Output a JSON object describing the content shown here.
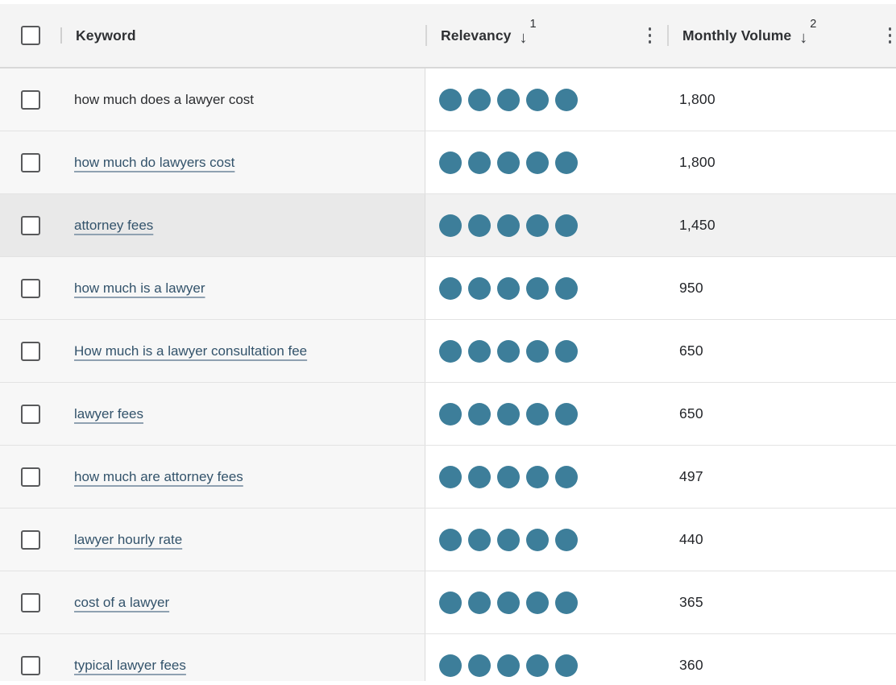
{
  "header": {
    "select_all": {
      "checked": false
    },
    "columns": [
      {
        "label": "Keyword"
      },
      {
        "label": "Relevancy",
        "sort_arrow": "↓",
        "sort_order": "1"
      },
      {
        "label": "Monthly Volume",
        "sort_arrow": "↓",
        "sort_order": "2"
      }
    ]
  },
  "colors": {
    "relevancy_dot": "#3d7e9a",
    "link_text": "#33536b",
    "header_bg": "#f4f4f4",
    "keyword_col_bg": "#f7f7f7",
    "highlight_row_bg": "#f1f1f1",
    "highlight_keyword_cell_bg": "#e9e9e9"
  },
  "table": {
    "relevancy_max": 5,
    "rows": [
      {
        "keyword": "how much does a lawyer cost",
        "is_link": false,
        "relevancy": 5,
        "monthly_volume": "1,800",
        "highlighted": false,
        "checked": false
      },
      {
        "keyword": "how much do lawyers cost",
        "is_link": true,
        "relevancy": 5,
        "monthly_volume": "1,800",
        "highlighted": false,
        "checked": false
      },
      {
        "keyword": "attorney fees",
        "is_link": true,
        "relevancy": 5,
        "monthly_volume": "1,450",
        "highlighted": true,
        "checked": false
      },
      {
        "keyword": "how much is a lawyer",
        "is_link": true,
        "relevancy": 5,
        "monthly_volume": "950",
        "highlighted": false,
        "checked": false
      },
      {
        "keyword": "How much is a lawyer consultation fee",
        "is_link": true,
        "relevancy": 5,
        "monthly_volume": "650",
        "highlighted": false,
        "checked": false
      },
      {
        "keyword": "lawyer fees",
        "is_link": true,
        "relevancy": 5,
        "monthly_volume": "650",
        "highlighted": false,
        "checked": false
      },
      {
        "keyword": "how much are attorney fees",
        "is_link": true,
        "relevancy": 5,
        "monthly_volume": "497",
        "highlighted": false,
        "checked": false
      },
      {
        "keyword": "lawyer hourly rate",
        "is_link": true,
        "relevancy": 5,
        "monthly_volume": "440",
        "highlighted": false,
        "checked": false
      },
      {
        "keyword": "cost of a lawyer",
        "is_link": true,
        "relevancy": 5,
        "monthly_volume": "365",
        "highlighted": false,
        "checked": false
      },
      {
        "keyword": "typical lawyer fees",
        "is_link": true,
        "relevancy": 5,
        "monthly_volume": "360",
        "highlighted": false,
        "checked": false
      }
    ]
  }
}
